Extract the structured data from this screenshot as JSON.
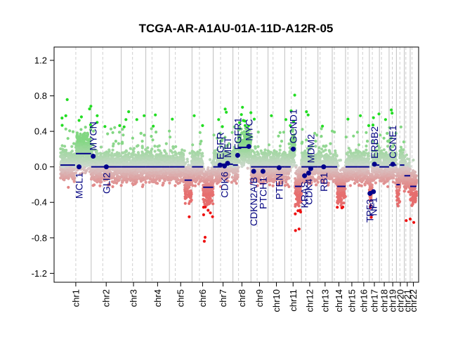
{
  "chart_data": {
    "type": "scatter",
    "title": "TCGA-AR-A1AU-01A-11D-A12R-05",
    "xlabel": "",
    "ylabel": "",
    "ylim": [
      -1.3,
      1.35
    ],
    "yticks": [
      1.2,
      0.8,
      0.4,
      0.0,
      -0.4,
      -0.8,
      -1.2
    ],
    "ytick_labels": [
      "1.2",
      "0.8",
      "0.4",
      "0.0",
      "-0.4",
      "-0.8",
      "-1.2"
    ],
    "grid": false,
    "colors": {
      "gain_strong": "#22dd22",
      "gain": "#9bd89b",
      "loss": "#e08080",
      "loss_strong": "#ee1111",
      "segment": "#00008b",
      "boundary": "#bfbfbf",
      "centromere": "#cfcfcf",
      "gene_label": "#000080"
    },
    "chromosomes": [
      {
        "name": "chr1",
        "start": 0.0,
        "end": 248.0,
        "centro": 124.0,
        "segments": [
          {
            "s": 0,
            "e": 118,
            "v": 0.02
          },
          {
            "s": 124,
            "e": 248,
            "v": 0.15
          }
        ]
      },
      {
        "name": "chr2",
        "start": 248.0,
        "end": 490.0,
        "centro": 341.0,
        "segments": [
          {
            "s": 248,
            "e": 490,
            "v": 0.0
          }
        ]
      },
      {
        "name": "chr3",
        "start": 490.0,
        "end": 688.0,
        "centro": 581.0,
        "segments": [
          {
            "s": 490,
            "e": 688,
            "v": 0.0
          }
        ]
      },
      {
        "name": "chr4",
        "start": 688.0,
        "end": 878.0,
        "centro": 738.0,
        "segments": [
          {
            "s": 688,
            "e": 878,
            "v": 0.0
          }
        ]
      },
      {
        "name": "chr5",
        "start": 878.0,
        "end": 1060.0,
        "centro": 926.0,
        "segments": [
          {
            "s": 878,
            "e": 1000,
            "v": 0.0
          },
          {
            "s": 1000,
            "e": 1060,
            "v": -0.15
          }
        ]
      },
      {
        "name": "chr6",
        "start": 1060.0,
        "end": 1231.0,
        "centro": 1120.0,
        "segments": [
          {
            "s": 1060,
            "e": 1150,
            "v": 0.0
          },
          {
            "s": 1150,
            "e": 1231,
            "v": -0.23
          }
        ]
      },
      {
        "name": "chr7",
        "start": 1231.0,
        "end": 1390.0,
        "centro": 1290.0,
        "segments": [
          {
            "s": 1231,
            "e": 1300,
            "v": 0.0
          },
          {
            "s": 1300,
            "e": 1390,
            "v": 0.03
          }
        ]
      },
      {
        "name": "chr8",
        "start": 1390.0,
        "end": 1535.0,
        "centro": 1435.0,
        "segments": [
          {
            "s": 1390,
            "e": 1430,
            "v": 0.02
          },
          {
            "s": 1435,
            "e": 1535,
            "v": 0.22
          }
        ]
      },
      {
        "name": "chr9",
        "start": 1535.0,
        "end": 1673.0,
        "centro": 1585.0,
        "segments": [
          {
            "s": 1535,
            "e": 1673,
            "v": 0.0
          }
        ]
      },
      {
        "name": "chr10",
        "start": 1673.0,
        "end": 1807.0,
        "centro": 1713.0,
        "segments": [
          {
            "s": 1673,
            "e": 1807,
            "v": 0.0
          }
        ]
      },
      {
        "name": "chr11",
        "start": 1807.0,
        "end": 1942.0,
        "centro": 1860.0,
        "segments": [
          {
            "s": 1807,
            "e": 1855,
            "v": 0.0
          },
          {
            "s": 1855,
            "e": 1890,
            "v": 0.2
          },
          {
            "s": 1890,
            "e": 1942,
            "v": -0.22
          }
        ]
      },
      {
        "name": "chr12",
        "start": 1942.0,
        "end": 2075.0,
        "centro": 1977.0,
        "segments": [
          {
            "s": 1942,
            "e": 2075,
            "v": 0.0
          }
        ]
      },
      {
        "name": "chr13",
        "start": 2075.0,
        "end": 2190.0,
        "centro": 2092.0,
        "segments": [
          {
            "s": 2075,
            "e": 2190,
            "v": 0.0
          }
        ]
      },
      {
        "name": "chr14",
        "start": 2190.0,
        "end": 2297.0,
        "centro": 2207.0,
        "segments": [
          {
            "s": 2190,
            "e": 2230,
            "v": 0.0
          },
          {
            "s": 2230,
            "e": 2297,
            "v": -0.22
          }
        ]
      },
      {
        "name": "chr15",
        "start": 2297.0,
        "end": 2399.0,
        "centro": 2316.0,
        "segments": [
          {
            "s": 2297,
            "e": 2399,
            "v": 0.0
          }
        ]
      },
      {
        "name": "chr16",
        "start": 2399.0,
        "end": 2489.0,
        "centro": 2435.0,
        "segments": [
          {
            "s": 2399,
            "e": 2489,
            "v": 0.0
          }
        ]
      },
      {
        "name": "chr17",
        "start": 2489.0,
        "end": 2570.0,
        "centro": 2513.0,
        "segments": [
          {
            "s": 2489,
            "e": 2511,
            "v": -0.28
          },
          {
            "s": 2511,
            "e": 2570,
            "v": 0.02
          }
        ]
      },
      {
        "name": "chr18",
        "start": 2570.0,
        "end": 2648.0,
        "centro": 2587.0,
        "segments": [
          {
            "s": 2570,
            "e": 2648,
            "v": 0.0
          }
        ]
      },
      {
        "name": "chr19",
        "start": 2648.0,
        "end": 2707.0,
        "centro": 2674.0,
        "segments": [
          {
            "s": 2648,
            "e": 2707,
            "v": 0.02
          }
        ]
      },
      {
        "name": "chr20",
        "start": 2707.0,
        "end": 2771.0,
        "centro": 2735.0,
        "segments": [
          {
            "s": 2707,
            "e": 2735,
            "v": -0.2
          },
          {
            "s": 2735,
            "e": 2771,
            "v": 0.02
          }
        ]
      },
      {
        "name": "chr21",
        "start": 2771.0,
        "end": 2818.0,
        "centro": 2783.0,
        "segments": [
          {
            "s": 2771,
            "e": 2818,
            "v": -0.1
          }
        ]
      },
      {
        "name": "chr22",
        "start": 2818.0,
        "end": 2869.0,
        "centro": 2833.0,
        "segments": [
          {
            "s": 2818,
            "e": 2869,
            "v": -0.22
          }
        ]
      }
    ],
    "genes": [
      {
        "name": "MCL1",
        "chr": "chr1",
        "pos": 150.0,
        "value": 0.0,
        "side": "below"
      },
      {
        "name": "MYCN",
        "chr": "chr2",
        "pos": 264.0,
        "value": 0.12,
        "side": "above"
      },
      {
        "name": "GLI2",
        "chr": "chr2",
        "pos": 370.0,
        "value": 0.0,
        "side": "below"
      },
      {
        "name": "CDK6",
        "chr": "chr7",
        "pos": 1322.0,
        "value": 0.01,
        "side": "below"
      },
      {
        "name": "EGFR",
        "chr": "chr7",
        "pos": 1286.0,
        "value": 0.02,
        "side": "above"
      },
      {
        "name": "MET",
        "chr": "chr7",
        "pos": 1347.0,
        "value": 0.04,
        "side": "above"
      },
      {
        "name": "FGFR1",
        "chr": "chr8",
        "pos": 1428.0,
        "value": 0.13,
        "side": "above"
      },
      {
        "name": "MYC",
        "chr": "chr8",
        "pos": 1518.0,
        "value": 0.23,
        "side": "above"
      },
      {
        "name": "CDKN2A/B",
        "chr": "chr9",
        "pos": 1557.0,
        "value": -0.05,
        "side": "below"
      },
      {
        "name": "PTCH1",
        "chr": "chr9",
        "pos": 1632.0,
        "value": -0.05,
        "side": "below"
      },
      {
        "name": "PTEN",
        "chr": "chr10",
        "pos": 1762.0,
        "value": -0.01,
        "side": "below"
      },
      {
        "name": "GCND1",
        "chr": "chr11",
        "pos": 1876.0,
        "value": 0.2,
        "side": "above"
      },
      {
        "name": "KRAS",
        "chr": "chr12",
        "pos": 1967.0,
        "value": -0.1,
        "side": "below"
      },
      {
        "name": "CDK4",
        "chr": "chr12",
        "pos": 2000.0,
        "value": -0.07,
        "side": "below"
      },
      {
        "name": "MDM2",
        "chr": "chr12",
        "pos": 2017.0,
        "value": -0.02,
        "side": "above"
      },
      {
        "name": "RB1",
        "chr": "chr13",
        "pos": 2121.0,
        "value": 0.0,
        "side": "below"
      },
      {
        "name": "TP53",
        "chr": "chr17",
        "pos": 2494.0,
        "value": -0.3,
        "side": "below"
      },
      {
        "name": "NF1",
        "chr": "chr17",
        "pos": 2522.0,
        "value": -0.28,
        "side": "below"
      },
      {
        "name": "ERBB2",
        "chr": "chr17",
        "pos": 2530.0,
        "value": 0.03,
        "side": "above"
      },
      {
        "name": "CCNE1",
        "chr": "chr19",
        "pos": 2678.0,
        "value": 0.03,
        "side": "above"
      }
    ]
  }
}
